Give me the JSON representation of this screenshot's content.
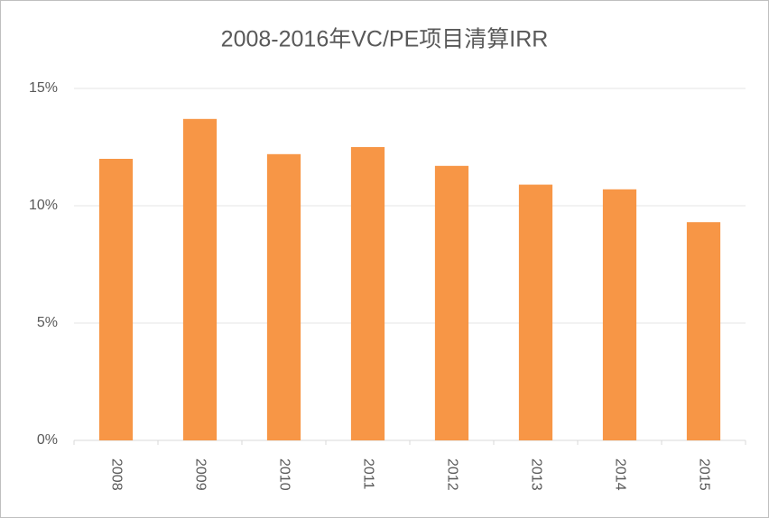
{
  "chart_data": {
    "type": "bar",
    "title": "2008-2016年VC/PE项目清算IRR",
    "categories": [
      "2008",
      "2009",
      "2010",
      "2011",
      "2012",
      "2013",
      "2014",
      "2015"
    ],
    "values": [
      12.0,
      13.7,
      12.2,
      12.5,
      11.7,
      10.9,
      10.7,
      9.3
    ],
    "color": "#f79646",
    "ylim": [
      0,
      15
    ],
    "yticks": [
      {
        "value": 0,
        "label": "0%"
      },
      {
        "value": 5,
        "label": "5%"
      },
      {
        "value": 10,
        "label": "10%"
      },
      {
        "value": 15,
        "label": "15%"
      }
    ],
    "grid": true
  }
}
